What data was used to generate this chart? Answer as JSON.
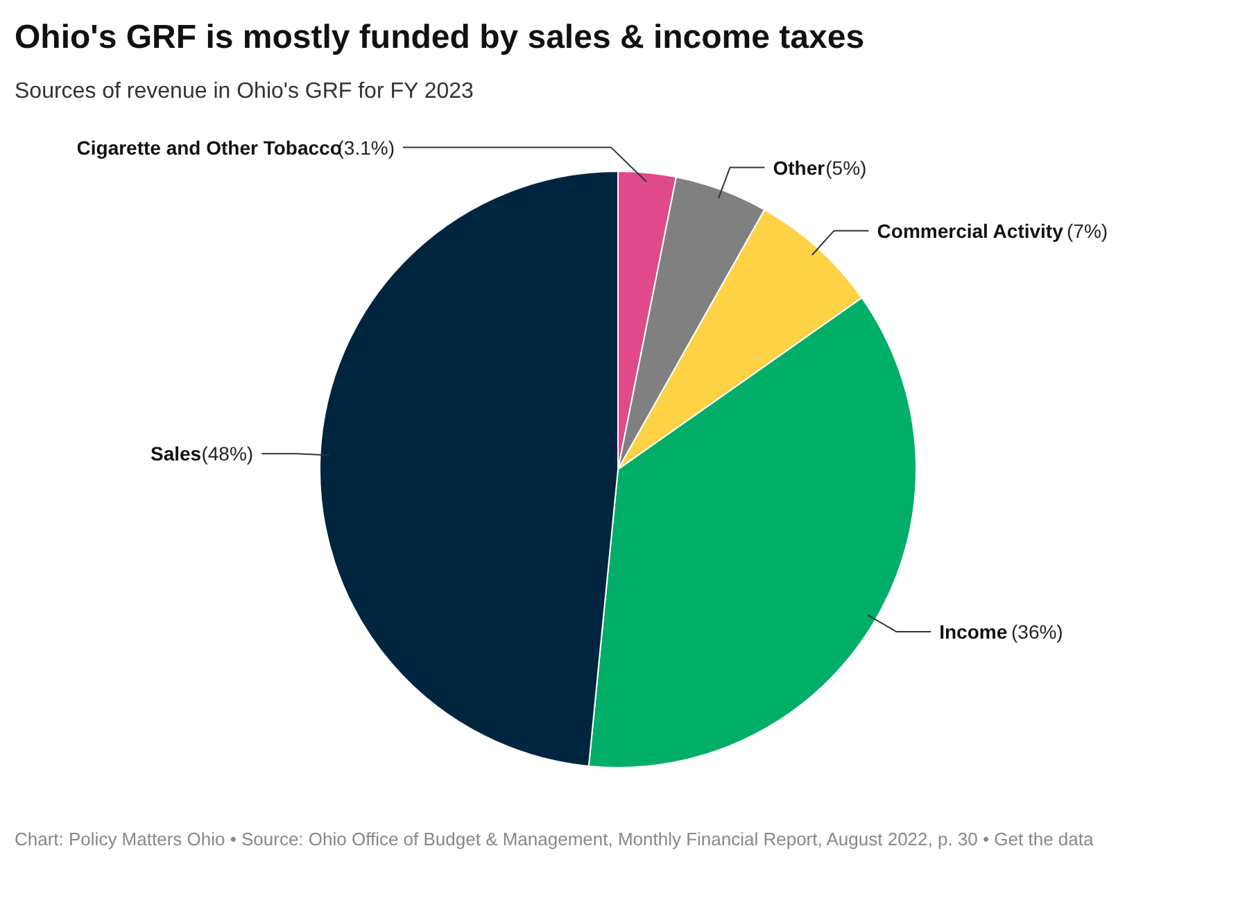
{
  "chart_data": {
    "type": "pie",
    "title": "Ohio's GRF is mostly funded by sales & income taxes",
    "subtitle": "Sources of revenue in Ohio's GRF for FY 2023",
    "categories": [
      "Cigarette and Other Tobacco",
      "Other",
      "Commercial Activity",
      "Income",
      "Sales"
    ],
    "values": [
      3.1,
      5,
      7,
      36,
      48
    ],
    "colors": [
      "#e0498a",
      "#808080",
      "#fdd244",
      "#00ae68",
      "#00253f"
    ],
    "value_labels": [
      "(3.1%)",
      "(5%)",
      "(7%)",
      "(36%)",
      "(48%)"
    ],
    "annotations": [
      "Chart: Policy Matters Ohio • Source: Ohio Office of Budget & Management, Monthly Financial Report, August 2022, p. 30 • Get the data"
    ]
  }
}
